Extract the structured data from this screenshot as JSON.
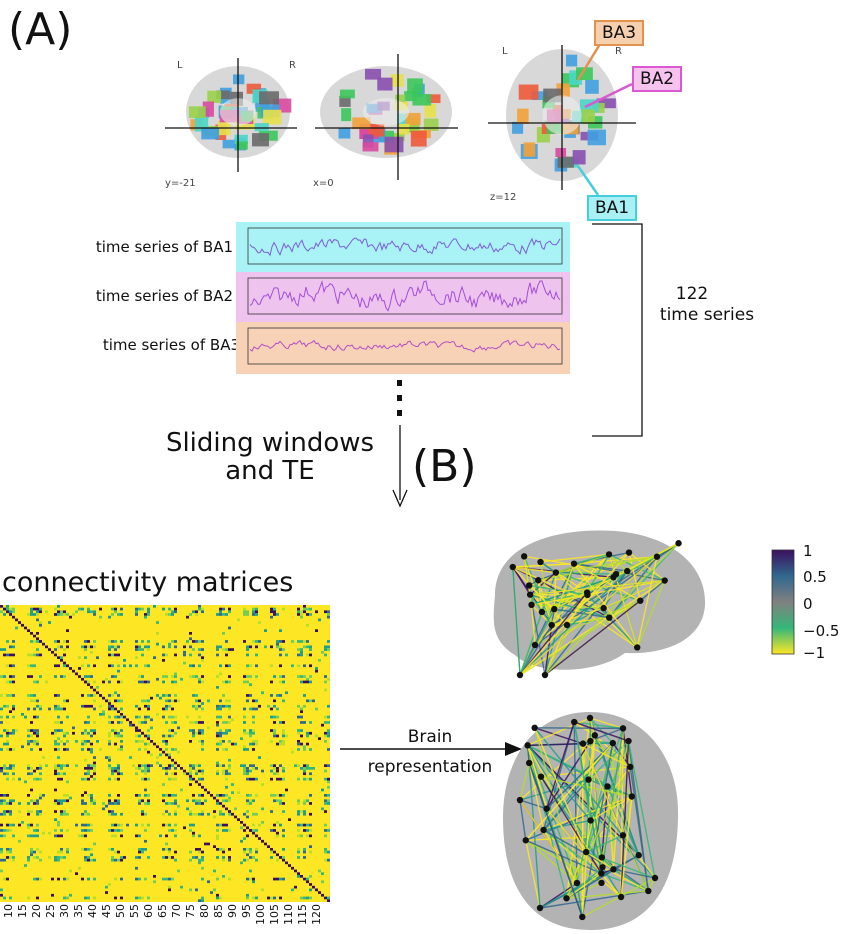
{
  "panels": {
    "a": "(A)",
    "b": "(B)"
  },
  "brain_slices": {
    "coronal": {
      "left": "L",
      "right": "R",
      "coord": "y=-21"
    },
    "sagittal": {
      "coord": "x=0"
    },
    "axial": {
      "left": "L",
      "right": "R",
      "coord": "z=12"
    }
  },
  "callouts": [
    {
      "label": "BA3",
      "color": "#f5cfae",
      "border": "#e1924f"
    },
    {
      "label": "BA2",
      "color": "#f6c3ee",
      "border": "#d95ad0"
    },
    {
      "label": "BA1",
      "color": "#a8f0f4",
      "border": "#45cfdc"
    }
  ],
  "time_series": [
    {
      "label": "time series of BA1",
      "bg": "#a9f2f6",
      "line": "#7b5ed6"
    },
    {
      "label": "time series of BA2",
      "bg": "#eec3ee",
      "line": "#a24fd8"
    },
    {
      "label": "time series of BA3",
      "bg": "#f7d2b7",
      "line": "#b54fc6"
    }
  ],
  "bracket_label": {
    "count": "122",
    "text": "time series"
  },
  "sliding": {
    "line1": "Sliding windows",
    "line2": "and TE"
  },
  "matrix_title": "connectivity matrices",
  "matrix_ticks": [
    "10",
    "15",
    "20",
    "25",
    "30",
    "35",
    "40",
    "45",
    "50",
    "55",
    "60",
    "65",
    "70",
    "75",
    "80",
    "85",
    "90",
    "95",
    "100",
    "105",
    "110",
    "115",
    "120"
  ],
  "brain_arrow": {
    "line1": "Brain",
    "line2": "representation"
  },
  "colorbar": {
    "ticks": [
      "1",
      "0.5",
      "0",
      "−0.5",
      "−1"
    ],
    "colors": [
      "#3b0f5e",
      "#31688e",
      "#808080",
      "#35b779",
      "#fde725"
    ]
  }
}
